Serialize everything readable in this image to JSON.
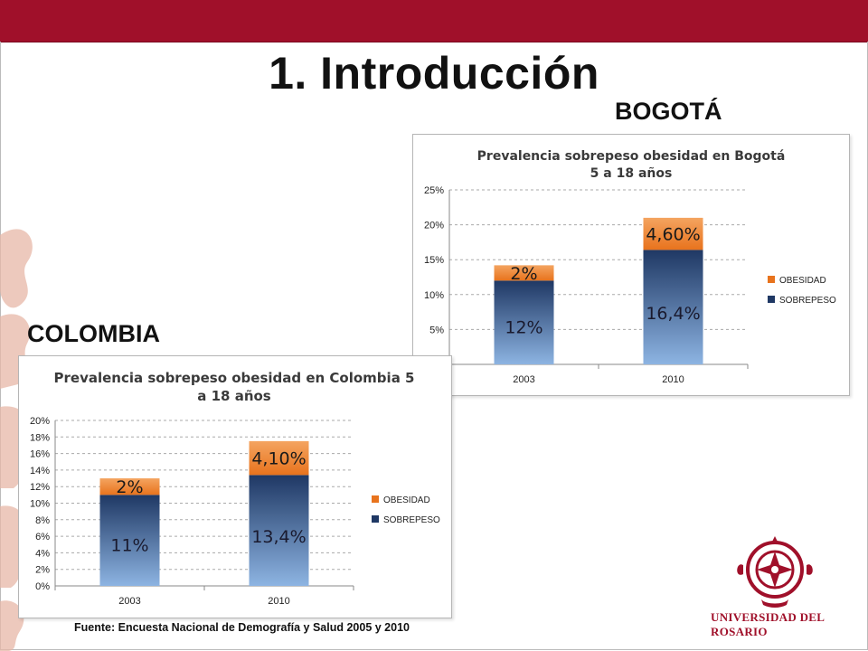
{
  "slide": {
    "title": "1. Introducción",
    "bogota_label": "BOGOTÁ",
    "colombia_label": "COLOMBIA",
    "source": "Fuente: Encuesta Nacional de Demografía y Salud 2005 y 2010",
    "logo_text": "Universidad del Rosario"
  },
  "colors": {
    "topbar": "#a0102a",
    "obesidad": "#e8731d",
    "sobrepeso_top": "#1f3864",
    "sobrepeso_bottom": "#8db4e2"
  },
  "chart_data": [
    {
      "type": "bar",
      "stacked": true,
      "title": "Prevalencia sobrepeso obesidad en Bogotá",
      "subtitle": "5 a 18 años",
      "categories": [
        "2003",
        "2010"
      ],
      "series": [
        {
          "name": "SOBREPESO",
          "values": [
            12,
            16.4
          ],
          "labels": [
            "12%",
            "16,4%"
          ]
        },
        {
          "name": "OBESIDAD",
          "values": [
            2.2,
            4.6
          ],
          "labels": [
            "2%",
            "4,60%"
          ]
        }
      ],
      "ylim": [
        0,
        25
      ],
      "yticks": [
        "0%",
        "5%",
        "10%",
        "15%",
        "20%",
        "25%"
      ],
      "ytick_values": [
        0,
        5,
        10,
        15,
        20,
        25
      ],
      "grid": true,
      "legend": "right",
      "legend_entries": [
        "OBESIDAD",
        "SOBREPESO"
      ]
    },
    {
      "type": "bar",
      "stacked": true,
      "title": "Prevalencia sobrepeso obesidad en Colombia 5",
      "subtitle": "a 18 años",
      "categories": [
        "2003",
        "2010"
      ],
      "series": [
        {
          "name": "SOBREPESO",
          "values": [
            11,
            13.4
          ],
          "labels": [
            "11%",
            "13,4%"
          ]
        },
        {
          "name": "OBESIDAD",
          "values": [
            2,
            4.1
          ],
          "labels": [
            "2%",
            "4,10%"
          ]
        }
      ],
      "ylim": [
        0,
        20
      ],
      "yticks": [
        "0%",
        "2%",
        "4%",
        "6%",
        "8%",
        "10%",
        "12%",
        "14%",
        "16%",
        "18%",
        "20%"
      ],
      "ytick_values": [
        0,
        2,
        4,
        6,
        8,
        10,
        12,
        14,
        16,
        18,
        20
      ],
      "grid": true,
      "legend": "right",
      "legend_entries": [
        "OBESIDAD",
        "SOBREPESO"
      ]
    }
  ]
}
